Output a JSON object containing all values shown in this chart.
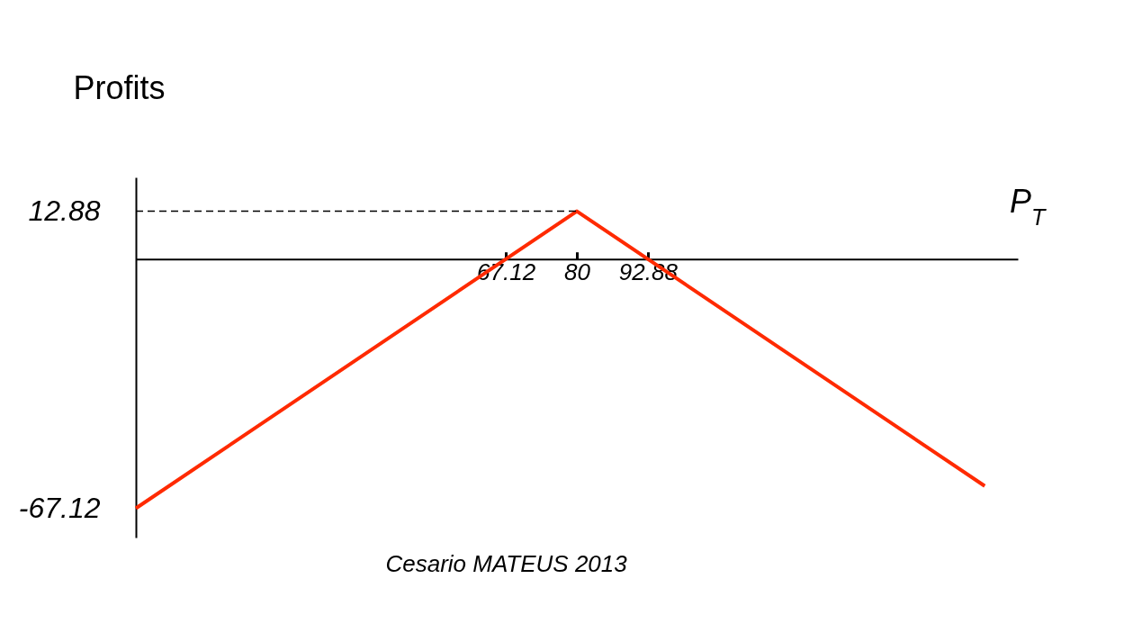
{
  "chart_data": {
    "type": "line",
    "xlabel": "P$_{T}$",
    "ylabel": "Profits",
    "x": [
      0,
      80,
      154
    ],
    "series": [
      {
        "color": "#ff2a00",
        "values": [
          -67.12,
          12.88,
          -61.12
        ]
      }
    ],
    "xlim": [
      0,
      160
    ],
    "ylim": [
      -75,
      22
    ],
    "xticks": [
      67.12,
      80,
      92.88
    ],
    "yticks": [
      12.88,
      -67.12
    ],
    "ref_lines": [
      {
        "axis": "y",
        "value": 12.88,
        "line_style": "dashed",
        "color": "#000000"
      }
    ],
    "annotations": [
      "Cesario MATEUS 2013"
    ],
    "grid": false,
    "marker": "none",
    "line_style": "solid"
  }
}
